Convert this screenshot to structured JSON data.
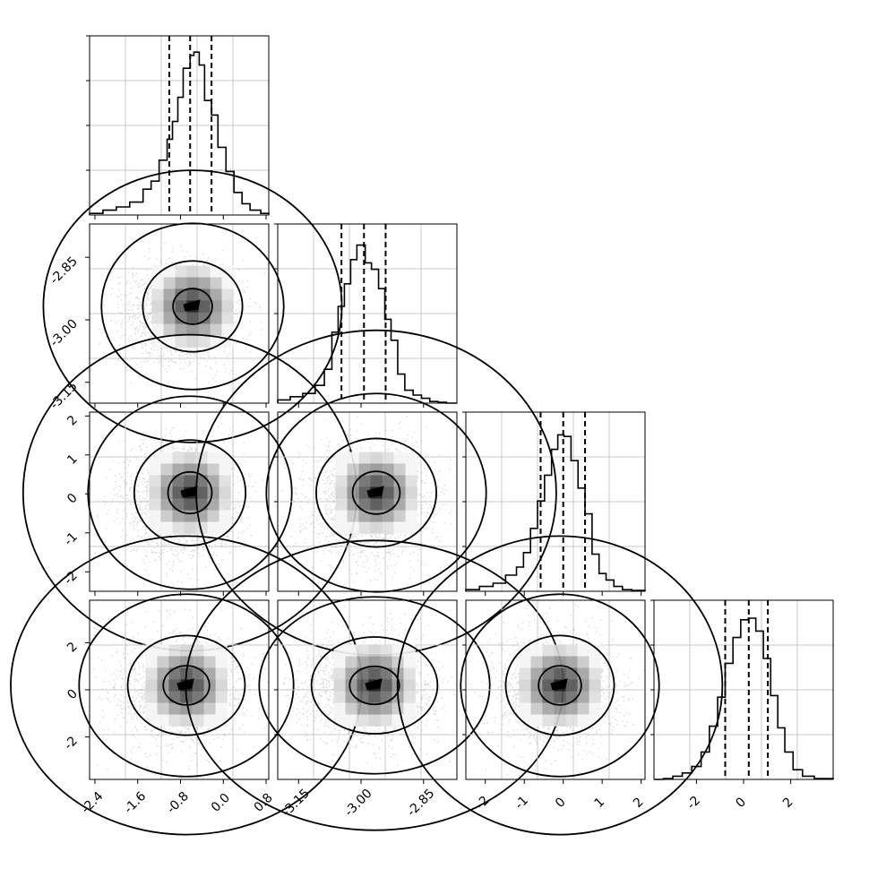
{
  "chart_data": {
    "type": "corner",
    "n_params": 4,
    "grid": true,
    "dashed_quantiles": [
      [
        -1.01,
        -0.62,
        -0.22
      ],
      [
        -3.047,
        -2.993,
        -2.941
      ],
      [
        -0.58,
        0.0,
        0.56
      ],
      [
        -0.78,
        0.22,
        1.03
      ]
    ],
    "ranges": [
      [
        -2.5,
        0.85
      ],
      [
        -3.2,
        -2.77
      ],
      [
        -2.5,
        2.1
      ],
      [
        -3.8,
        3.8
      ]
    ],
    "ticks": [
      [
        "-2.4",
        "-1.6",
        "-0.8",
        "0.0",
        "0.8"
      ],
      [
        "-3.15",
        "-3.00",
        "-2.85"
      ],
      [
        "-2",
        "-1",
        "0",
        "1",
        "2"
      ],
      [
        "-2",
        "0",
        "2"
      ]
    ],
    "histograms": [
      {
        "edges": [
          -2.5,
          -2.25,
          -2.0,
          -1.75,
          -1.5,
          -1.35,
          -1.2,
          -1.05,
          -0.95,
          -0.85,
          -0.75,
          -0.62,
          -0.55,
          -0.45,
          -0.35,
          -0.22,
          -0.1,
          0.05,
          0.2,
          0.35,
          0.5,
          0.7,
          0.85
        ],
        "counts": [
          0.01,
          0.03,
          0.05,
          0.08,
          0.16,
          0.21,
          0.34,
          0.47,
          0.58,
          0.73,
          0.91,
          0.99,
          1.01,
          0.93,
          0.71,
          0.62,
          0.42,
          0.27,
          0.14,
          0.07,
          0.03,
          0.01
        ]
      },
      {
        "edges": [
          -3.2,
          -3.17,
          -3.14,
          -3.11,
          -3.088,
          -3.07,
          -3.055,
          -3.04,
          -3.025,
          -3.01,
          -2.99,
          -2.975,
          -2.958,
          -2.943,
          -2.928,
          -2.912,
          -2.895,
          -2.875,
          -2.855,
          -2.835,
          -2.815,
          -2.795,
          -2.77
        ],
        "counts": [
          0.02,
          0.04,
          0.06,
          0.11,
          0.21,
          0.44,
          0.6,
          0.74,
          0.89,
          0.98,
          0.87,
          0.83,
          0.71,
          0.52,
          0.39,
          0.18,
          0.08,
          0.05,
          0.03,
          0.01,
          0.005,
          0.0
        ]
      },
      {
        "edges": [
          -2.5,
          -2.15,
          -1.8,
          -1.48,
          -1.2,
          -1.02,
          -0.84,
          -0.66,
          -0.48,
          -0.3,
          -0.14,
          0.02,
          0.2,
          0.38,
          0.56,
          0.74,
          0.92,
          1.1,
          1.3,
          1.52,
          1.76,
          2.1
        ],
        "counts": [
          0.01,
          0.03,
          0.05,
          0.1,
          0.15,
          0.24,
          0.39,
          0.56,
          0.72,
          0.88,
          0.97,
          0.96,
          0.81,
          0.64,
          0.48,
          0.23,
          0.11,
          0.07,
          0.03,
          0.01,
          0.005
        ]
      },
      {
        "edges": [
          -3.8,
          -3.4,
          -3.0,
          -2.6,
          -2.2,
          -1.8,
          -1.45,
          -1.1,
          -0.78,
          -0.45,
          -0.12,
          0.2,
          0.52,
          0.84,
          1.15,
          1.45,
          1.75,
          2.1,
          2.5,
          3.0,
          3.8
        ],
        "counts": [
          0.0,
          0.005,
          0.02,
          0.04,
          0.08,
          0.17,
          0.33,
          0.51,
          0.72,
          0.88,
          0.99,
          1.0,
          0.92,
          0.75,
          0.52,
          0.32,
          0.17,
          0.06,
          0.02,
          0.005
        ]
      }
    ],
    "density": {
      "centers": [
        -0.62,
        -2.993,
        0.0,
        0.2
      ],
      "sigmas": [
        0.38,
        0.052,
        0.56,
        0.97
      ],
      "contour_sigma_levels": [
        0.5,
        1.0,
        1.5,
        2.0
      ],
      "blob_cells": 7
    }
  }
}
